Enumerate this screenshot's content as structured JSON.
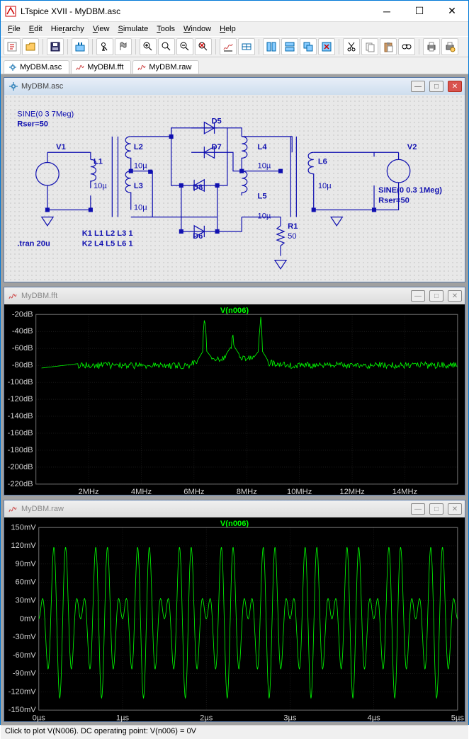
{
  "window": {
    "title": "LTspice XVII - MyDBM.asc"
  },
  "menu": {
    "items": [
      "File",
      "Edit",
      "Hierarchy",
      "View",
      "Simulate",
      "Tools",
      "Window",
      "Help"
    ]
  },
  "tabs": {
    "items": [
      "MyDBM.asc",
      "MyDBM.fft",
      "MyDBM.raw"
    ]
  },
  "schematic": {
    "title": "MyDBM.asc",
    "text_color": "#1010b0",
    "grid_color": "#a0a0a0",
    "labels": {
      "src1a": "SINE(0 3 7Meg)",
      "src1b": "Rser=50",
      "V1": "V1",
      "L1": "L1",
      "L1v": "10µ",
      "L2": "L2",
      "L2v": "10µ",
      "L3": "L3",
      "L3v": "10µ",
      "L4": "L4",
      "L4v": "10µ",
      "L5": "L5",
      "L5v": "10µ",
      "L6": "L6",
      "L6v": "10µ",
      "D5": "D5",
      "D6": "D6",
      "D7": "D7",
      "D8": "D8",
      "R1": "R1",
      "R1v": "50",
      "V2": "V2",
      "src2a": "SINE(0 0.3 1Meg)",
      "src2b": "Rser=50",
      "tran": ".tran 20u",
      "K1": "K1 L1 L2 L3 1",
      "K2": "K2 L4 L5 L6 1"
    }
  },
  "fft": {
    "title": "MyDBM.fft",
    "trace_label": "V(n006)",
    "trace_color": "#00ff00",
    "bg_color": "#000000",
    "grid_color": "#303030",
    "ylim": [
      -220,
      -20
    ],
    "ytick_step": 20,
    "yticks": [
      "-20dB",
      "-40dB",
      "-60dB",
      "-80dB",
      "-100dB",
      "-120dB",
      "-140dB",
      "-160dB",
      "-180dB",
      "-200dB",
      "-220dB"
    ],
    "xticks": [
      "2MHz",
      "4MHz",
      "6MHz",
      "8MHz",
      "10MHz",
      "12MHz",
      "14MHz"
    ]
  },
  "raw": {
    "title": "MyDBM.raw",
    "trace_label": "V(n006)",
    "trace_color": "#00ff00",
    "bg_color": "#000000",
    "ylim": [
      -150,
      150
    ],
    "ytick_step": 30,
    "yticks": [
      "150mV",
      "120mV",
      "90mV",
      "60mV",
      "30mV",
      "0mV",
      "-30mV",
      "-60mV",
      "-90mV",
      "-120mV",
      "-150mV"
    ],
    "xticks": [
      "0µs",
      "1µs",
      "2µs",
      "3µs",
      "4µs",
      "5µs"
    ],
    "carrier_MHz": 7,
    "modulator_MHz": 1,
    "span_us": 5,
    "amplitude_mV": 130
  },
  "status": {
    "text": "Click to plot V(N006).  DC operating point: V(n006) = 0V"
  }
}
